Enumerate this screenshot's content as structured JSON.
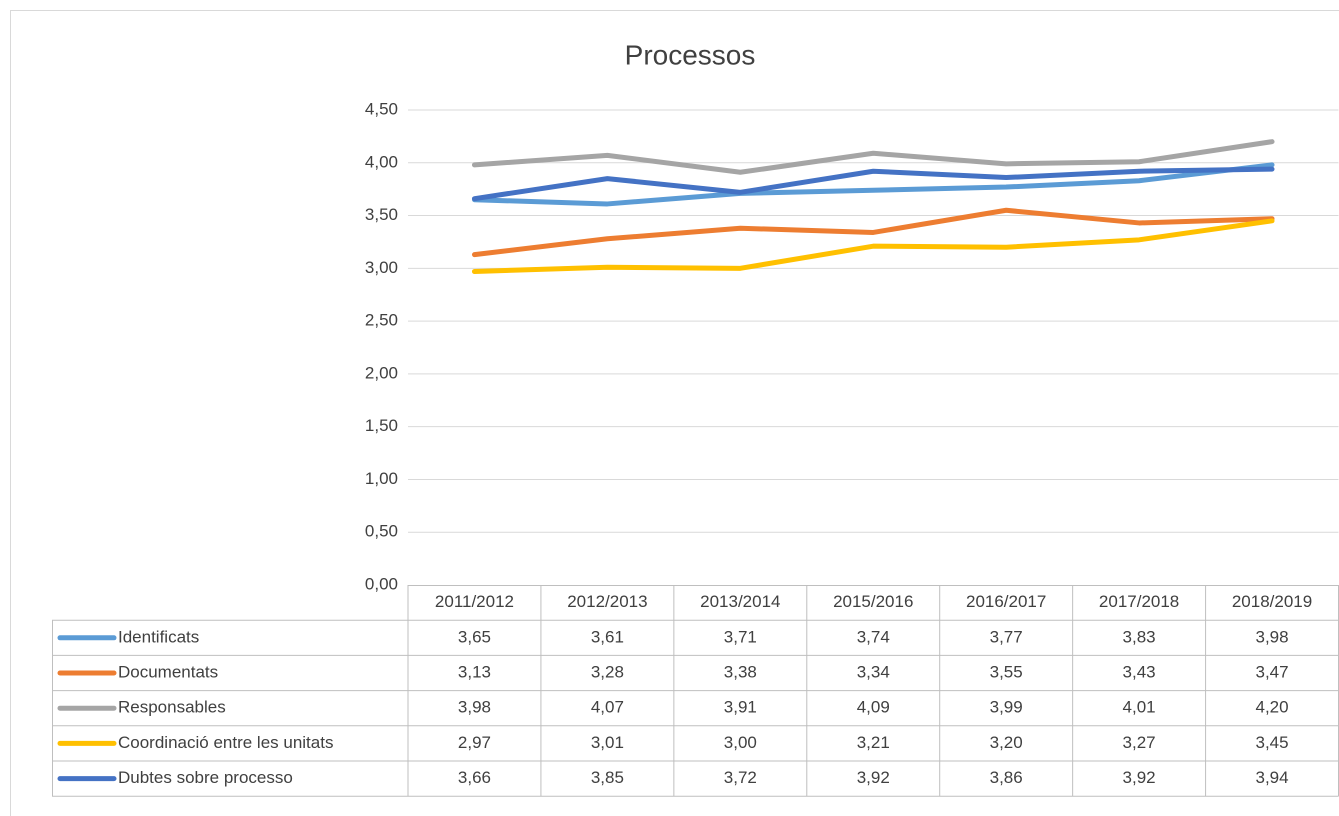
{
  "chart_data": {
    "type": "line",
    "title": "Processos",
    "categories": [
      "2011/2012",
      "2012/2013",
      "2013/2014",
      "2015/2016",
      "2016/2017",
      "2017/2018",
      "2018/2019"
    ],
    "series": [
      {
        "name": "Identificats",
        "color": "#5b9bd5",
        "values": [
          3.65,
          3.61,
          3.71,
          3.74,
          3.77,
          3.83,
          3.98
        ],
        "value_labels": [
          "3,65",
          "3,61",
          "3,71",
          "3,74",
          "3,77",
          "3,83",
          "3,98"
        ]
      },
      {
        "name": "Documentats",
        "color": "#ed7d31",
        "values": [
          3.13,
          3.28,
          3.38,
          3.34,
          3.55,
          3.43,
          3.47
        ],
        "value_labels": [
          "3,13",
          "3,28",
          "3,38",
          "3,34",
          "3,55",
          "3,43",
          "3,47"
        ]
      },
      {
        "name": "Responsables",
        "color": "#a5a5a5",
        "values": [
          3.98,
          4.07,
          3.91,
          4.09,
          3.99,
          4.01,
          4.2
        ],
        "value_labels": [
          "3,98",
          "4,07",
          "3,91",
          "4,09",
          "3,99",
          "4,01",
          "4,20"
        ]
      },
      {
        "name": "Coordinació entre les unitats",
        "color": "#ffc000",
        "values": [
          2.97,
          3.01,
          3.0,
          3.21,
          3.2,
          3.27,
          3.45
        ],
        "value_labels": [
          "2,97",
          "3,01",
          "3,00",
          "3,21",
          "3,20",
          "3,27",
          "3,45"
        ]
      },
      {
        "name": "Dubtes sobre processo",
        "color": "#4472c4",
        "values": [
          3.66,
          3.85,
          3.72,
          3.92,
          3.86,
          3.92,
          3.94
        ],
        "value_labels": [
          "3,66",
          "3,85",
          "3,72",
          "3,92",
          "3,86",
          "3,92",
          "3,94"
        ]
      }
    ],
    "ylim": [
      0,
      4.5
    ],
    "yticks": [
      {
        "value": 0,
        "label": "0,00"
      },
      {
        "value": 0.5,
        "label": "0,50"
      },
      {
        "value": 1,
        "label": "1,00"
      },
      {
        "value": 1.5,
        "label": "1,50"
      },
      {
        "value": 2,
        "label": "2,00"
      },
      {
        "value": 2.5,
        "label": "2,50"
      },
      {
        "value": 3,
        "label": "3,00"
      },
      {
        "value": 3.5,
        "label": "3,50"
      },
      {
        "value": 4,
        "label": "4,00"
      },
      {
        "value": 4.5,
        "label": "4,50"
      }
    ],
    "grid": true
  }
}
